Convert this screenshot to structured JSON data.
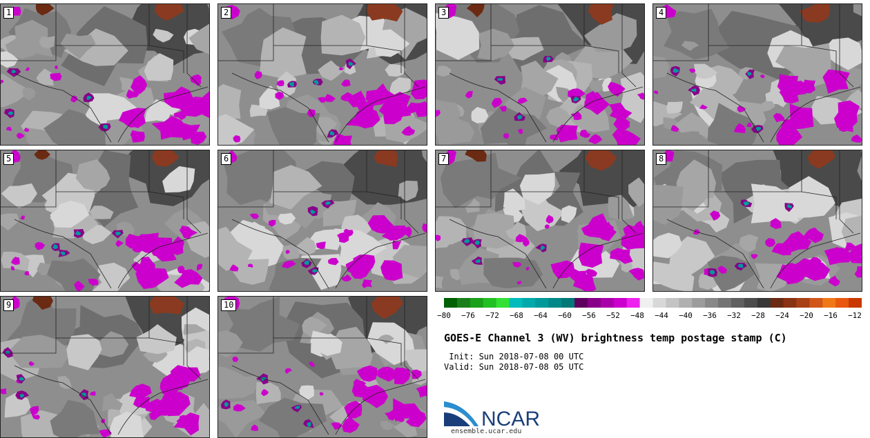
{
  "panels": [
    {
      "label": "1"
    },
    {
      "label": "2"
    },
    {
      "label": "3"
    },
    {
      "label": "4"
    },
    {
      "label": "5"
    },
    {
      "label": "6"
    },
    {
      "label": "7"
    },
    {
      "label": "8"
    },
    {
      "label": "9"
    },
    {
      "label": "10"
    }
  ],
  "colorbar": {
    "ticks": [
      "−80",
      "−76",
      "−72",
      "−68",
      "−64",
      "−60",
      "−56",
      "−52",
      "−48",
      "−44",
      "−40",
      "−36",
      "−32",
      "−28",
      "−24",
      "−20",
      "−16",
      "−12"
    ],
    "colors": [
      "#005f00",
      "#1a7f1a",
      "#1aa01a",
      "#22c022",
      "#35e035",
      "#00bcbc",
      "#00aaaa",
      "#009a9a",
      "#008888",
      "#007878",
      "#5f005f",
      "#880088",
      "#aa00aa",
      "#cc00cc",
      "#ee22ee",
      "#f0f0f0",
      "#d8d8d8",
      "#c4c4c4",
      "#b0b0b0",
      "#9c9c9c",
      "#888888",
      "#747474",
      "#606060",
      "#4c4c4c",
      "#383838",
      "#6b2a12",
      "#8a3314",
      "#a84016",
      "#d0561a",
      "#f07818",
      "#e85810",
      "#c83800"
    ]
  },
  "title": "GOES-E Channel 3 (WV) brightness temp postage stamp (C)",
  "init": " Init: Sun 2018-07-08 00 UTC",
  "valid": "Valid: Sun 2018-07-08 05 UTC",
  "logo": {
    "name": "NCAR",
    "url": "ensemble.ucar.edu",
    "color": "#1a3e7a",
    "swoosh": "#2a8fd0"
  }
}
